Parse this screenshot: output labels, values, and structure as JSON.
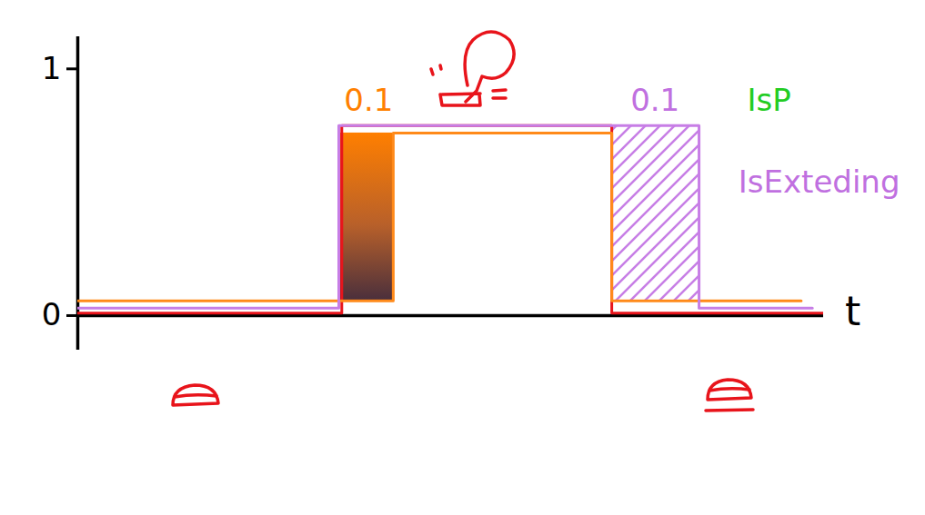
{
  "chart_data": {
    "type": "line",
    "line_style": "step",
    "x_label": "t",
    "xlim": [
      0,
      10
    ],
    "ylim": [
      -0.14,
      1.13
    ],
    "yticks": [
      0,
      1
    ],
    "tick_labels": "y",
    "series": [
      {
        "color": "#e8141b",
        "x": [
          0,
          3.54,
          7.16,
          10
        ],
        "values": [
          0.01,
          0.77,
          0.01,
          0.01
        ]
      },
      {
        "color": "#ff8a1a",
        "x": [
          0,
          4.23,
          7.16,
          9.7
        ],
        "values": [
          0.06,
          0.74,
          0.06,
          0.06
        ]
      },
      {
        "color": "#c77ee6",
        "x": [
          0,
          3.5,
          8.33,
          9.85
        ],
        "values": [
          0.03,
          0.77,
          0.03,
          0.03
        ]
      }
    ],
    "annotations": [
      {
        "text": "0.1",
        "x": 3.9,
        "y": 0.87,
        "color": "#ff8000"
      },
      {
        "text": "0.1",
        "x": 7.74,
        "y": 0.87,
        "color": "#c070e0"
      },
      {
        "text": "IsP",
        "x": 9.27,
        "y": 0.87,
        "color": "#22cc22"
      },
      {
        "text": "IsExteding",
        "x": 9.94,
        "y": 0.54,
        "color": "#c070e0"
      }
    ]
  }
}
